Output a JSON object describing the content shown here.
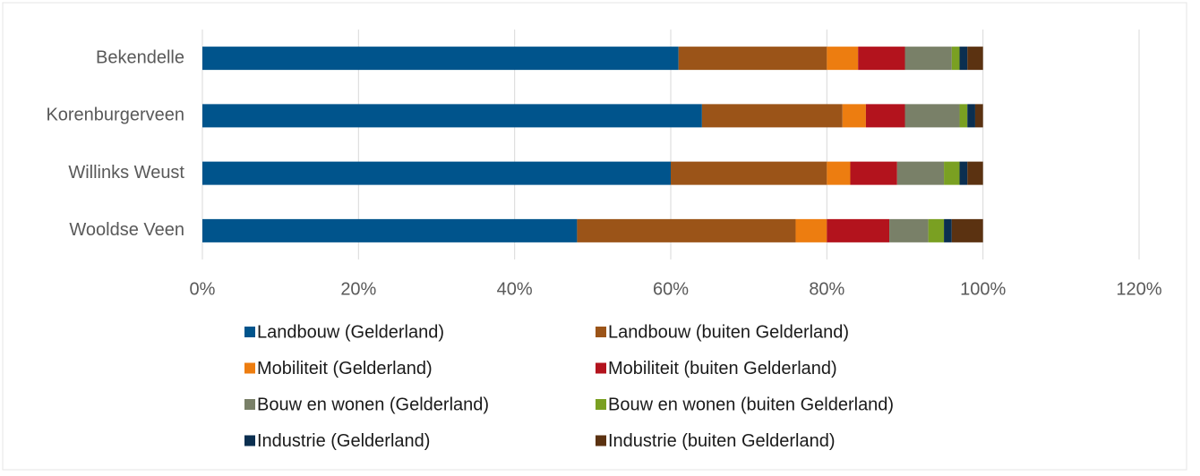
{
  "chart_data": {
    "type": "stacked_barh",
    "categories": [
      "Bekendelle",
      "Korenburgerveen",
      "Willinks Weust",
      "Wooldse Veen"
    ],
    "series": [
      {
        "name": "Landbouw (Gelderland)",
        "color": "#00548c",
        "values": [
          61,
          64,
          60,
          48
        ]
      },
      {
        "name": "Landbouw (buiten Gelderland)",
        "color": "#9b5418",
        "values": [
          19,
          18,
          20,
          28
        ]
      },
      {
        "name": "Mobiliteit (Gelderland)",
        "color": "#ed7d10",
        "values": [
          4,
          3,
          3,
          4
        ]
      },
      {
        "name": "Mobiliteit (buiten Gelderland)",
        "color": "#b3131d",
        "values": [
          6,
          5,
          6,
          8
        ]
      },
      {
        "name": "Bouw en wonen (Gelderland)",
        "color": "#798068",
        "values": [
          6,
          7,
          6,
          5
        ]
      },
      {
        "name": "Bouw en wonen (buiten Gelderland)",
        "color": "#7aa022",
        "values": [
          1,
          1,
          2,
          2
        ]
      },
      {
        "name": "Industrie (Gelderland)",
        "color": "#0b2f50",
        "values": [
          1,
          1,
          1,
          1
        ]
      },
      {
        "name": "Industrie (buiten Gelderland)",
        "color": "#5b3211",
        "values": [
          2,
          1,
          2,
          4
        ]
      }
    ],
    "xlim": [
      0,
      120
    ],
    "xticks": [
      {
        "value": 0,
        "label": "0%"
      },
      {
        "value": 20,
        "label": "20%"
      },
      {
        "value": 40,
        "label": "40%"
      },
      {
        "value": 60,
        "label": "60%"
      },
      {
        "value": 80,
        "label": "80%"
      },
      {
        "value": 100,
        "label": "100%"
      },
      {
        "value": 120,
        "label": "120%"
      }
    ],
    "grid": true,
    "legend": "bottom"
  }
}
